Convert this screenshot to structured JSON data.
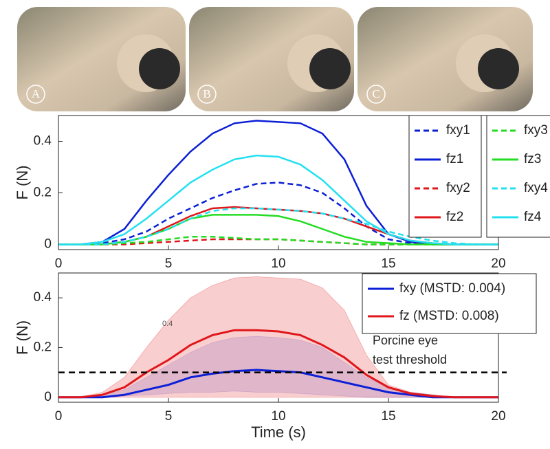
{
  "panels": [
    "A",
    "B",
    "C"
  ],
  "chart_data": [
    {
      "type": "line",
      "ylabel": "F (N)",
      "x": [
        0,
        1,
        2,
        3,
        4,
        5,
        6,
        7,
        8,
        9,
        10,
        11,
        12,
        13,
        14,
        15,
        16,
        17,
        18,
        19,
        20
      ],
      "xlim": [
        0,
        20
      ],
      "xticks": [
        0,
        5,
        10,
        15,
        20
      ],
      "ylim": [
        -0.02,
        0.5
      ],
      "yticks": [
        0,
        0.2,
        0.4
      ],
      "legend": "upper right",
      "series": [
        {
          "name": "fxy1",
          "color": "#0b1fd6",
          "dash": true,
          "values": [
            0,
            0,
            0.005,
            0.02,
            0.05,
            0.1,
            0.14,
            0.18,
            0.21,
            0.235,
            0.24,
            0.23,
            0.2,
            0.14,
            0.07,
            0.02,
            0.005,
            0,
            0,
            0,
            0
          ]
        },
        {
          "name": "fz1",
          "color": "#0b1fd6",
          "dash": false,
          "values": [
            0,
            0,
            0.01,
            0.06,
            0.17,
            0.27,
            0.36,
            0.43,
            0.47,
            0.48,
            0.475,
            0.47,
            0.43,
            0.33,
            0.15,
            0.04,
            0.01,
            0,
            0,
            0,
            0
          ]
        },
        {
          "name": "fxy2",
          "color": "#e0161b",
          "dash": true,
          "values": [
            0,
            0,
            0,
            0,
            0.005,
            0.01,
            0.015,
            0.02,
            0.02,
            0.02,
            0.02,
            0.015,
            0.01,
            0.005,
            0,
            0,
            0,
            0,
            0,
            0,
            0
          ]
        },
        {
          "name": "fz2",
          "color": "#e0161b",
          "dash": false,
          "values": [
            0,
            0,
            0,
            0.01,
            0.03,
            0.07,
            0.11,
            0.14,
            0.145,
            0.14,
            0.135,
            0.13,
            0.12,
            0.1,
            0.07,
            0.04,
            0.015,
            0.005,
            0,
            0,
            0
          ]
        },
        {
          "name": "fxy3",
          "color": "#22dd22",
          "dash": true,
          "values": [
            0,
            0,
            0,
            0.005,
            0.01,
            0.02,
            0.03,
            0.03,
            0.025,
            0.02,
            0.02,
            0.015,
            0.01,
            0.005,
            0,
            0,
            0,
            0,
            0,
            0,
            0
          ]
        },
        {
          "name": "fz3",
          "color": "#22dd22",
          "dash": false,
          "values": [
            0,
            0,
            0,
            0.01,
            0.03,
            0.06,
            0.1,
            0.115,
            0.115,
            0.115,
            0.11,
            0.09,
            0.06,
            0.03,
            0.01,
            0.005,
            0,
            0,
            0,
            0,
            0
          ]
        },
        {
          "name": "fxy4",
          "color": "#22e0f0",
          "dash": true,
          "values": [
            0,
            0,
            0,
            0.01,
            0.03,
            0.06,
            0.1,
            0.13,
            0.14,
            0.14,
            0.135,
            0.13,
            0.12,
            0.1,
            0.08,
            0.05,
            0.03,
            0.015,
            0.005,
            0,
            0
          ]
        },
        {
          "name": "fz4",
          "color": "#22e0f0",
          "dash": false,
          "values": [
            0,
            0,
            0.01,
            0.04,
            0.1,
            0.17,
            0.24,
            0.29,
            0.33,
            0.345,
            0.34,
            0.31,
            0.25,
            0.17,
            0.09,
            0.04,
            0.015,
            0.005,
            0,
            0,
            0
          ]
        }
      ]
    },
    {
      "type": "band",
      "ylabel": "F (N)",
      "xlabel": "Time (s)",
      "x": [
        0,
        1,
        2,
        3,
        4,
        5,
        6,
        7,
        8,
        9,
        10,
        11,
        12,
        13,
        14,
        15,
        16,
        17,
        18,
        19,
        20
      ],
      "xlim": [
        0,
        20
      ],
      "xticks": [
        0,
        5,
        10,
        15,
        20
      ],
      "ylim": [
        -0.02,
        0.5
      ],
      "yticks": [
        0,
        0.2,
        0.4
      ],
      "legend": "upper right",
      "series": [
        {
          "name": "fxy (MSTD: 0.004)",
          "color": "#0b1fd6",
          "band_color": "#9a9cf0",
          "values": [
            0,
            0,
            0,
            0.01,
            0.03,
            0.05,
            0.08,
            0.095,
            0.105,
            0.11,
            0.105,
            0.1,
            0.08,
            0.06,
            0.04,
            0.02,
            0.01,
            0,
            0,
            0,
            0
          ],
          "upper": [
            0,
            0,
            0.01,
            0.03,
            0.08,
            0.13,
            0.18,
            0.22,
            0.24,
            0.245,
            0.24,
            0.23,
            0.2,
            0.14,
            0.08,
            0.04,
            0.02,
            0.01,
            0,
            0,
            0
          ],
          "lower": [
            0,
            0,
            0,
            0.005,
            0.01,
            0.015,
            0.02,
            0.02,
            0.025,
            0.02,
            0.02,
            0.015,
            0.01,
            0.005,
            0,
            0,
            0,
            0,
            0,
            0,
            0
          ]
        },
        {
          "name": "fz (MSTD: 0.008)",
          "color": "#e0161b",
          "band_color": "#f4a6a6",
          "values": [
            0,
            0,
            0.01,
            0.04,
            0.1,
            0.15,
            0.21,
            0.25,
            0.27,
            0.27,
            0.265,
            0.25,
            0.21,
            0.16,
            0.09,
            0.04,
            0.015,
            0.005,
            0,
            0,
            0
          ],
          "upper": [
            0,
            0,
            0.02,
            0.08,
            0.2,
            0.31,
            0.4,
            0.45,
            0.48,
            0.485,
            0.48,
            0.475,
            0.44,
            0.35,
            0.17,
            0.05,
            0.02,
            0.01,
            0,
            0,
            0
          ],
          "lower": [
            0,
            0,
            0,
            0,
            0,
            0,
            0,
            0,
            0,
            0,
            0,
            0,
            0,
            0,
            0,
            0,
            0,
            0,
            0,
            0,
            0
          ]
        }
      ],
      "threshold": {
        "value": 0.1,
        "label": [
          "Porcine eye",
          "test threshold"
        ]
      },
      "annotation": "0.4"
    }
  ]
}
